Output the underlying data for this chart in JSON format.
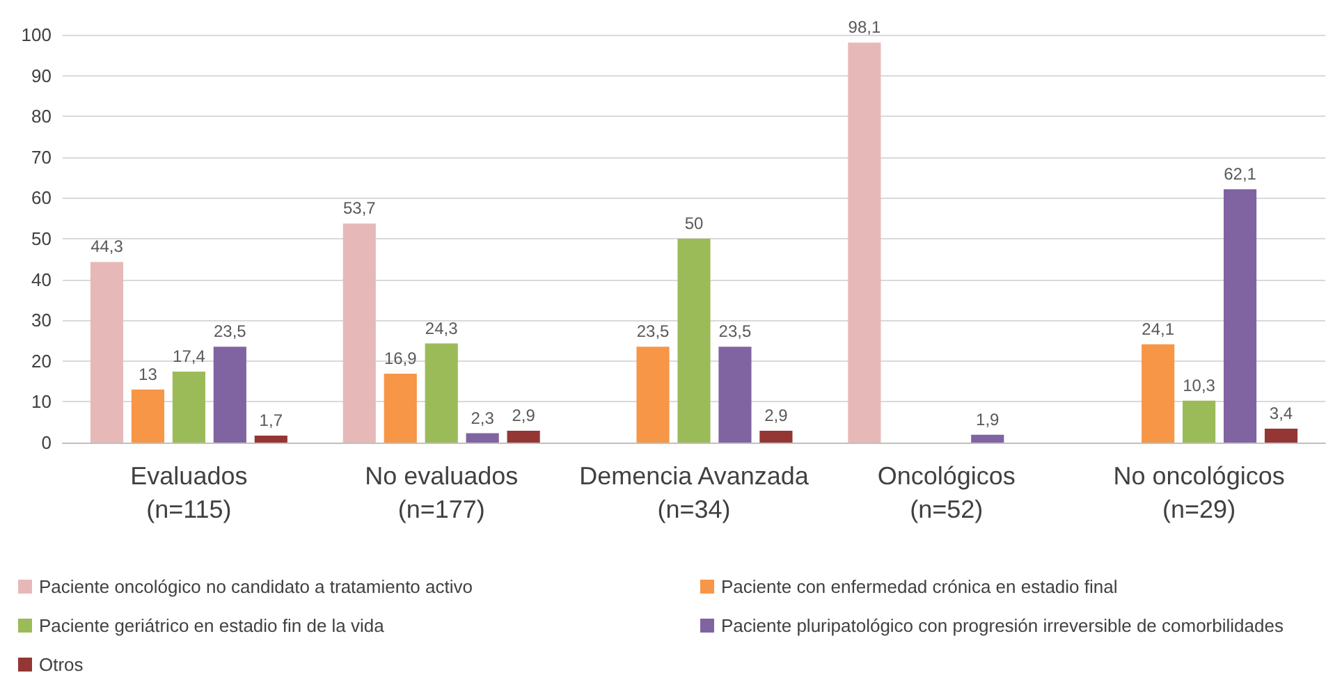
{
  "chart_data": {
    "type": "bar",
    "categories": [
      "Evaluados\n(n=115)",
      "No evaluados\n(n=177)",
      "Demencia Avanzada\n(n=34)",
      "Oncológicos\n(n=52)",
      "No oncológicos\n(n=29)"
    ],
    "series": [
      {
        "name": "Paciente oncológico no candidato a tratamiento activo",
        "color": "#e6b9b8",
        "values": [
          44.3,
          53.7,
          null,
          98.1,
          null
        ],
        "value_labels": [
          "44,3",
          "53,7",
          null,
          "98,1",
          null
        ]
      },
      {
        "name": "Paciente con enfermedad crónica en estadio final",
        "color": "#f79646",
        "values": [
          13,
          16.9,
          23.5,
          null,
          24.1
        ],
        "value_labels": [
          "13",
          "16,9",
          "23,5",
          null,
          "24,1"
        ]
      },
      {
        "name": "Paciente geriátrico en estadio fin de la vida",
        "color": "#9bbb59",
        "values": [
          17.4,
          24.3,
          50,
          null,
          10.3
        ],
        "value_labels": [
          "17,4",
          "24,3",
          "50",
          null,
          "10,3"
        ]
      },
      {
        "name": "Paciente pluripatológico con progresión irreversible de comorbilidades",
        "color": "#8064a2",
        "values": [
          23.5,
          2.3,
          23.5,
          1.9,
          62.1
        ],
        "value_labels": [
          "23,5",
          "2,3",
          "23,5",
          "1,9",
          "62,1"
        ]
      },
      {
        "name": "Otros",
        "color": "#943634",
        "values": [
          1.7,
          2.9,
          2.9,
          null,
          3.4
        ],
        "value_labels": [
          "1,7",
          "2,9",
          "2,9",
          null,
          "3,4"
        ]
      }
    ],
    "ylim": [
      0,
      100
    ],
    "yticks": [
      0,
      10,
      20,
      30,
      40,
      50,
      60,
      70,
      80,
      90,
      100
    ],
    "grid": "y",
    "legend": "bottom"
  }
}
